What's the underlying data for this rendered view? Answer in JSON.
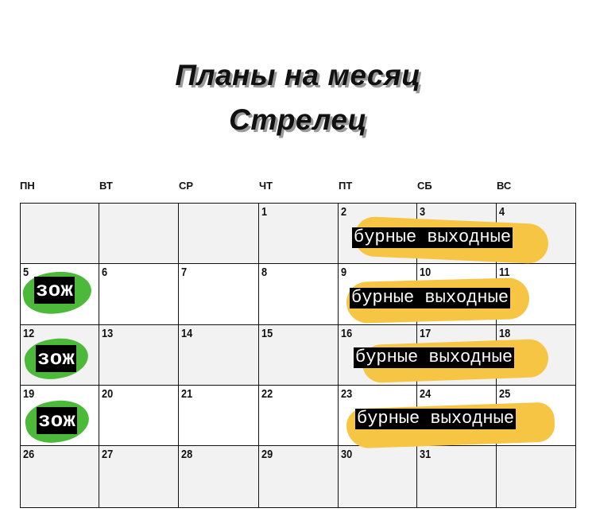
{
  "title": {
    "line1": "Планы на месяц",
    "line2": "Стрелец"
  },
  "weekdays": [
    "ПН",
    "ВТ",
    "СР",
    "ЧТ",
    "ПТ",
    "СБ",
    "ВС"
  ],
  "weeks": [
    [
      "",
      "",
      "",
      "1",
      "2",
      "3",
      "4"
    ],
    [
      "5",
      "6",
      "7",
      "8",
      "9",
      "10",
      "11"
    ],
    [
      "12",
      "13",
      "14",
      "15",
      "16",
      "17",
      "18"
    ],
    [
      "19",
      "20",
      "21",
      "22",
      "23",
      "24",
      "25"
    ],
    [
      "26",
      "27",
      "28",
      "29",
      "30",
      "31",
      ""
    ]
  ],
  "events": {
    "weekend_label": "бурные выходные",
    "health_label": "зож"
  },
  "colors": {
    "weekend_highlight": "#f6c544",
    "health_highlight": "#4db93a",
    "shaded_row": "#f2f2f2"
  }
}
